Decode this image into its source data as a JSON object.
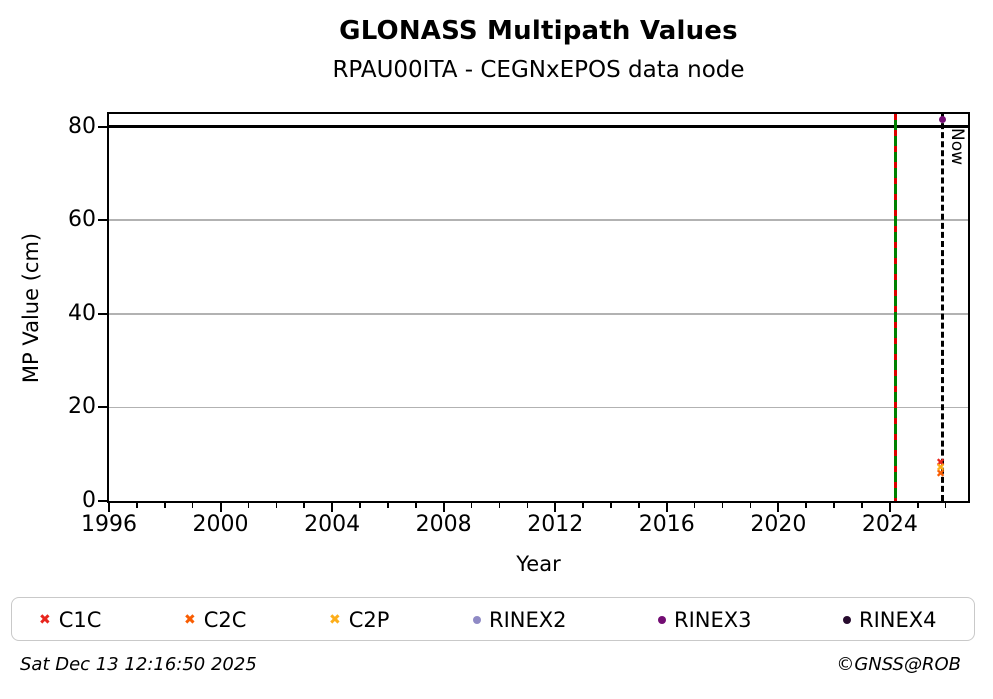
{
  "header": {
    "title": "GLONASS Multipath Values",
    "subtitle": "RPAU00ITA - CEGNxEPOS data node"
  },
  "footer": {
    "timestamp": "Sat Dec 13 12:16:50 2025",
    "credit": "©GNSS@ROB"
  },
  "chart_data": {
    "type": "scatter",
    "title": "GLONASS Multipath Values",
    "subtitle": "RPAU00ITA - CEGNxEPOS data node",
    "xlabel": "Year",
    "ylabel": "MP Value (cm)",
    "xlim": [
      1996,
      2026.8
    ],
    "ylim": [
      0,
      82.7
    ],
    "x_major_ticks": [
      1996,
      2000,
      2004,
      2008,
      2012,
      2016,
      2020,
      2024
    ],
    "x_minor_step": 1,
    "y_ticks": [
      0,
      20,
      40,
      60,
      80
    ],
    "grid": true,
    "legend_position": "bottom",
    "y_gridlines": [
      {
        "y": 20,
        "color": "#b2b2b2",
        "width": 1.5
      },
      {
        "y": 40,
        "color": "#b2b2b2",
        "width": 1.5
      },
      {
        "y": 60,
        "color": "#b2b2b2",
        "width": 1.5
      },
      {
        "y": 80,
        "color": "#000000",
        "width": 2.5
      }
    ],
    "series": [
      {
        "name": "C1C",
        "marker": "x",
        "color": "#e8251d",
        "points": [
          {
            "x": 2025.82,
            "y": 8.2
          }
        ]
      },
      {
        "name": "C2C",
        "marker": "x",
        "color": "#f95d02",
        "points": [
          {
            "x": 2025.82,
            "y": 5.7
          }
        ]
      },
      {
        "name": "C2P",
        "marker": "x",
        "color": "#fdae1a",
        "points": [
          {
            "x": 2025.82,
            "y": 7.0
          }
        ]
      },
      {
        "name": "RINEX2",
        "marker": "circle",
        "color": "#8f8ac5",
        "points": []
      },
      {
        "name": "RINEX3",
        "marker": "circle",
        "color": "#730d73",
        "points": [
          {
            "x": 2025.89,
            "y": 81.5
          }
        ]
      },
      {
        "name": "RINEX4",
        "marker": "circle",
        "color": "#270b2e",
        "points": []
      }
    ],
    "annotations": {
      "event_line": {
        "x": 2024.2,
        "line_color": "#008000",
        "dash_color": "#dd0000"
      },
      "now_line": {
        "x": 2025.9,
        "label": "Now",
        "color": "#000000",
        "style": "dashed"
      },
      "clip_limit_y": 80
    }
  }
}
